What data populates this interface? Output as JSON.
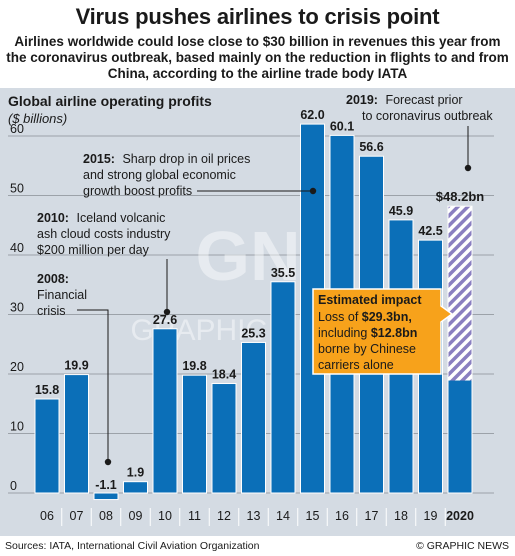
{
  "header": {
    "title": "Virus pushes airlines to crisis point",
    "subtitle": "Airlines worldwide could lose close to $30 billion in revenues this year from the coronavirus outbreak, based mainly on the reduction in flights to and from China, according to the airline trade body IATA"
  },
  "footer": {
    "sources": "Sources: IATA, International Civil Aviation Organization",
    "credit": "© GRAPHIC NEWS"
  },
  "watermark": {
    "logo": "GN",
    "text": "GRAPHIC NEWS"
  },
  "colors": {
    "bar": "#0b6fb8",
    "panel": "#d4dbe3",
    "callout": "#f7a21b",
    "hatch": "#8a7fc0"
  },
  "chart_data": {
    "type": "bar",
    "title": "Global airline operating profits",
    "ylabel": "($ billions)",
    "categories": [
      "06",
      "07",
      "08",
      "09",
      "10",
      "11",
      "12",
      "13",
      "14",
      "15",
      "16",
      "17",
      "18",
      "19",
      "2020"
    ],
    "values": [
      15.8,
      19.9,
      -1.1,
      1.9,
      27.6,
      19.8,
      18.4,
      25.3,
      35.5,
      62.0,
      60.1,
      56.6,
      45.9,
      42.5,
      48.2
    ],
    "value_labels": [
      "15.8",
      "19.9",
      "-1.1",
      "1.9",
      "27.6",
      "19.8",
      "18.4",
      "25.3",
      "35.5",
      "62.0",
      "60.1",
      "56.6",
      "45.9",
      "42.5",
      "$48.2bn"
    ],
    "forecast_category": "2020",
    "ylim": [
      -2,
      64
    ],
    "yticks": [
      0,
      10,
      20,
      30,
      40,
      50,
      60
    ],
    "grid": true,
    "annotations": [
      {
        "year": "2019:",
        "text": "Forecast prior to coronavirus outbreak"
      },
      {
        "year": "2015:",
        "text": "Sharp drop in oil prices and strong global economic growth boost profits"
      },
      {
        "year": "2010:",
        "text": "Iceland volcanic ash cloud costs industry $200 million per day"
      },
      {
        "year": "2008:",
        "text": "Financial crisis"
      }
    ],
    "callout": {
      "title": "Estimated impact",
      "text": "Loss of $29.3bn, including $12.8bn borne by Chinese carriers alone"
    }
  }
}
